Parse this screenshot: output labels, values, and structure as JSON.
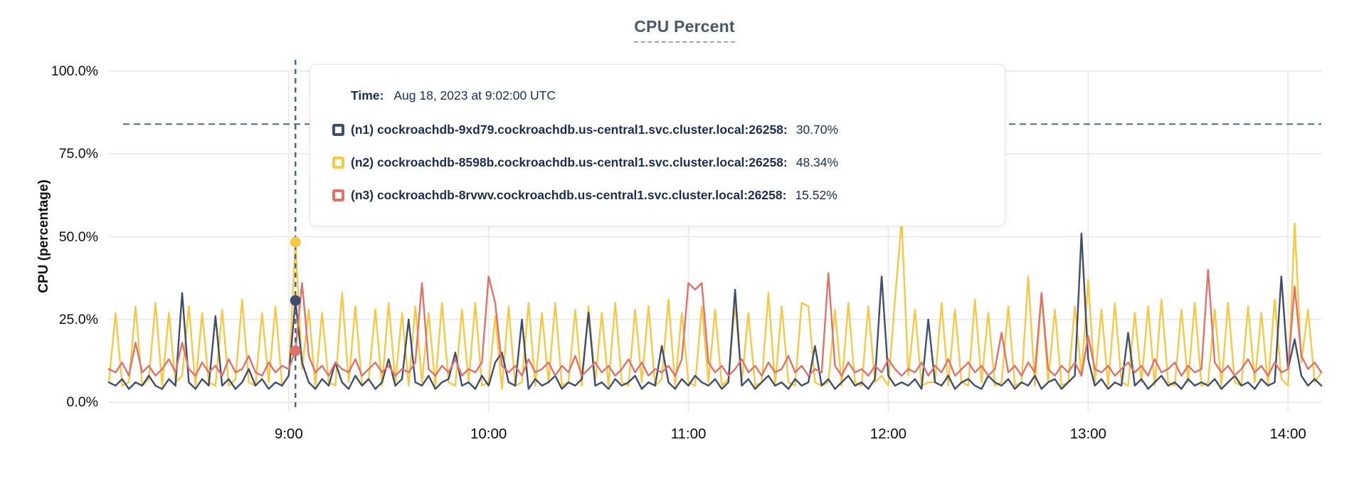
{
  "chart_data": {
    "type": "line",
    "title": "CPU Percent",
    "xlabel": "",
    "ylabel": "CPU (percentage)",
    "grid": true,
    "legend_position": "tooltip-overlay",
    "colors": {
      "grid": "#ececec",
      "crosshair": "#51677e",
      "threshold_line": "#51677e",
      "title": "#48596f"
    },
    "x_axis": {
      "unit": "minutes since 8:00 UTC",
      "min_minutes": 6,
      "max_minutes": 370,
      "start_minute": 6,
      "step_minutes": 2,
      "ticks": [
        {
          "minute": 60,
          "label": "9:00"
        },
        {
          "minute": 120,
          "label": "10:00"
        },
        {
          "minute": 180,
          "label": "11:00"
        },
        {
          "minute": 240,
          "label": "12:00"
        },
        {
          "minute": 300,
          "label": "13:00"
        },
        {
          "minute": 360,
          "label": "14:00"
        }
      ]
    },
    "y_axis": {
      "unit": "percent",
      "ylim": [
        0,
        100
      ],
      "ticks": [
        {
          "value": 0,
          "label": "0.0%"
        },
        {
          "value": 25,
          "label": "25.0%"
        },
        {
          "value": 50,
          "label": "50.0%"
        },
        {
          "value": 75,
          "label": "75.0%"
        },
        {
          "value": 100,
          "label": "100.0%"
        }
      ]
    },
    "threshold_value": 84,
    "hover": {
      "minute": 62,
      "crosshair": true
    },
    "tooltip": {
      "time_label": "Time:",
      "time_value": "Aug 18, 2023 at 9:02:00 UTC"
    },
    "series": [
      {
        "id": "n1",
        "color": "#3f4e6c",
        "tooltip_label": "(n1) cockroachdb-9xd79.cockroachdb.us-central1.svc.cluster.local:26258:",
        "tooltip_value": "30.70%",
        "hover_value": 30.7,
        "values": [
          6,
          5,
          7,
          4,
          6,
          5,
          8,
          5,
          4,
          7,
          5,
          33,
          6,
          4,
          7,
          5,
          26,
          5,
          7,
          4,
          6,
          10,
          5,
          7,
          4,
          6,
          5,
          8,
          30.7,
          12,
          6,
          4,
          7,
          5,
          12,
          6,
          4,
          8,
          5,
          7,
          4,
          6,
          13,
          5,
          7,
          25,
          6,
          5,
          8,
          4,
          6,
          7,
          15,
          5,
          6,
          4,
          8,
          5,
          12,
          15,
          6,
          5,
          25,
          4,
          7,
          5,
          6,
          8,
          4,
          6,
          5,
          7,
          27,
          5,
          6,
          4,
          7,
          5,
          6,
          8,
          4,
          6,
          5,
          17,
          6,
          4,
          7,
          5,
          8,
          6,
          5,
          7,
          4,
          6,
          34,
          5,
          7,
          4,
          6,
          8,
          5,
          6,
          4,
          7,
          5,
          6,
          17,
          5,
          7,
          4,
          6,
          8,
          5,
          6,
          4,
          7,
          38,
          8,
          5,
          6,
          5,
          7,
          4,
          25,
          6,
          5,
          8,
          4,
          6,
          7,
          5,
          4,
          8,
          6,
          5,
          7,
          4,
          6,
          5,
          8,
          4,
          6,
          7,
          4,
          6,
          8,
          51,
          13,
          5,
          7,
          4,
          6,
          5,
          21,
          5,
          7,
          4,
          6,
          8,
          5,
          6,
          4,
          7,
          5,
          6,
          5,
          7,
          4,
          6,
          8,
          5,
          6,
          4,
          7,
          5,
          6,
          38,
          10,
          19,
          8,
          5,
          7,
          5
        ]
      },
      {
        "id": "n2",
        "color": "#f7c843",
        "tooltip_label": "(n2) cockroachdb-8598b.cockroachdb.us-central1.svc.cluster.local:26258:",
        "tooltip_value": "48.34%",
        "hover_value": 48.34,
        "values": [
          6,
          27,
          5,
          6,
          29,
          5,
          7,
          30,
          5,
          27,
          6,
          8,
          29,
          5,
          27,
          6,
          5,
          28,
          5,
          7,
          31,
          6,
          5,
          27,
          6,
          29,
          5,
          8,
          48.3,
          10,
          28,
          5,
          27,
          6,
          5,
          33,
          6,
          29,
          5,
          7,
          28,
          5,
          30,
          6,
          27,
          5,
          29,
          6,
          27,
          5,
          30,
          6,
          5,
          28,
          6,
          30,
          5,
          6,
          26,
          4,
          29,
          5,
          6,
          30,
          5,
          27,
          6,
          30,
          5,
          6,
          28,
          5,
          29,
          6,
          27,
          5,
          30,
          6,
          5,
          28,
          6,
          29,
          5,
          7,
          31,
          5,
          27,
          6,
          5,
          29,
          6,
          28,
          5,
          7,
          30,
          6,
          27,
          5,
          6,
          33,
          5,
          29,
          6,
          5,
          30,
          29,
          6,
          5,
          6,
          28,
          5,
          30,
          6,
          5,
          29,
          6,
          8,
          5,
          31,
          55,
          8,
          28,
          5,
          6,
          6,
          30,
          5,
          28,
          6,
          5,
          31,
          6,
          27,
          5,
          6,
          29,
          5,
          6,
          38,
          5,
          33,
          6,
          28,
          5,
          6,
          29,
          8,
          37,
          6,
          28,
          5,
          30,
          6,
          5,
          27,
          6,
          29,
          5,
          31,
          6,
          5,
          28,
          6,
          30,
          5,
          6,
          28,
          5,
          30,
          6,
          5,
          29,
          6,
          27,
          5,
          31,
          7,
          5,
          54,
          12,
          28,
          6,
          9
        ]
      },
      {
        "id": "n3",
        "color": "#e0716b",
        "tooltip_label": "(n3) cockroachdb-8rvwv.cockroachdb.us-central1.svc.cluster.local:26258:",
        "tooltip_value": "15.52%",
        "hover_value": 15.52,
        "values": [
          10,
          9,
          12,
          8,
          18,
          9,
          11,
          8,
          10,
          13,
          9,
          18,
          10,
          8,
          12,
          9,
          11,
          8,
          13,
          9,
          10,
          14,
          9,
          8,
          12,
          9,
          11,
          10,
          15.5,
          36,
          14,
          9,
          11,
          8,
          12,
          10,
          9,
          13,
          8,
          10,
          12,
          9,
          11,
          8,
          10,
          9,
          12,
          36,
          10,
          8,
          11,
          9,
          13,
          8,
          10,
          9,
          12,
          38,
          30,
          11,
          9,
          11,
          8,
          13,
          9,
          10,
          12,
          8,
          11,
          9,
          14,
          8,
          10,
          12,
          9,
          11,
          8,
          10,
          13,
          9,
          12,
          8,
          10,
          9,
          11,
          8,
          13,
          36,
          34,
          36,
          12,
          9,
          11,
          8,
          10,
          13,
          9,
          11,
          8,
          12,
          9,
          10,
          14,
          9,
          11,
          8,
          10,
          9,
          39,
          11,
          8,
          12,
          9,
          10,
          8,
          11,
          9,
          13,
          10,
          8,
          10,
          9,
          12,
          8,
          11,
          9,
          13,
          8,
          10,
          12,
          9,
          11,
          8,
          10,
          21,
          9,
          11,
          8,
          12,
          9,
          33,
          10,
          8,
          11,
          9,
          12,
          8,
          20,
          10,
          9,
          11,
          8,
          10,
          12,
          9,
          11,
          8,
          13,
          9,
          10,
          12,
          8,
          11,
          9,
          10,
          40,
          12,
          9,
          11,
          8,
          10,
          13,
          9,
          11,
          8,
          12,
          9,
          10,
          35,
          14,
          10,
          12,
          9
        ]
      }
    ]
  }
}
